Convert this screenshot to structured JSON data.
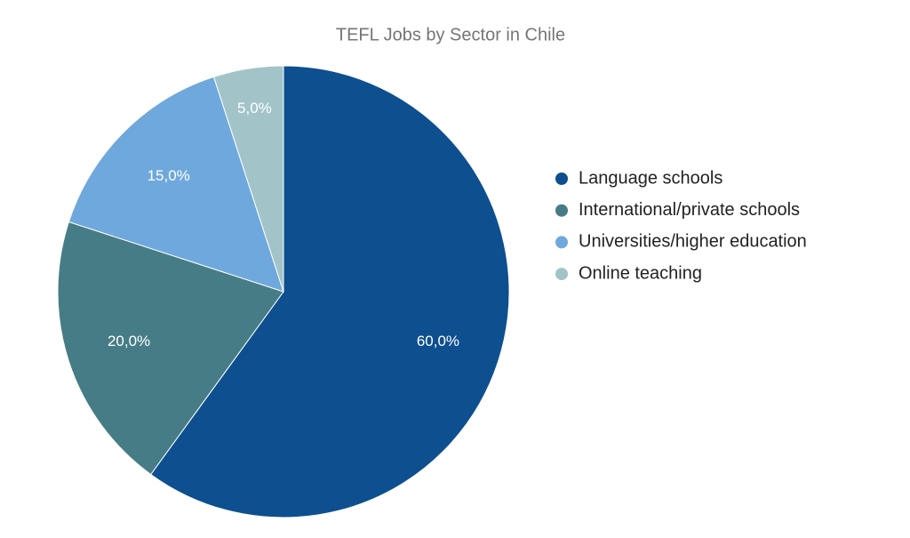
{
  "chart_data": {
    "type": "pie",
    "title": "TEFL Jobs by Sector in Chile",
    "categories": [
      "Language schools",
      "International/private schools",
      "Universities/higher education",
      "Online teaching"
    ],
    "values": [
      60,
      20,
      15,
      5
    ],
    "value_labels": [
      "60,0%",
      "20,0%",
      "15,0%",
      "5,0%"
    ],
    "colors": [
      "#0d4f8f",
      "#467c86",
      "#6fa8dc",
      "#a2c4c9"
    ],
    "legend": "right"
  }
}
